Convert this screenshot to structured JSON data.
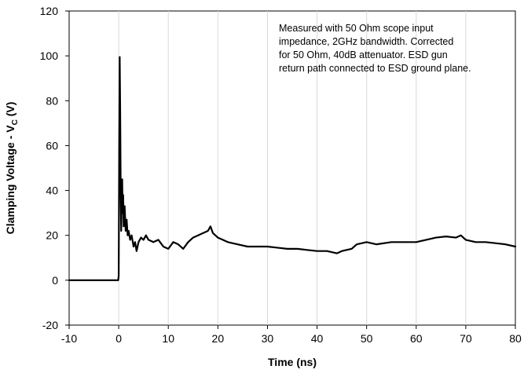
{
  "chart_data": {
    "type": "line",
    "title": "",
    "xlabel": "Time (ns)",
    "ylabel": {
      "main": "Clamping Voltage - V",
      "subscript": "C",
      "suffix": " (V)"
    },
    "xlim": [
      -10,
      80
    ],
    "ylim": [
      -20,
      120
    ],
    "x_ticks": [
      "-10",
      "0",
      "10",
      "20",
      "30",
      "40",
      "50",
      "60",
      "70",
      "80"
    ],
    "y_ticks": [
      "-20",
      "0",
      "20",
      "40",
      "60",
      "80",
      "100",
      "120"
    ],
    "grid": "vertical",
    "legend": "none",
    "annotation": [
      "Measured with 50 Ohm scope input",
      "impedance, 2GHz bandwidth. Corrected",
      "for 50 Ohm, 40dB attenuator. ESD gun",
      "return path connected to ESD ground plane."
    ],
    "series": [
      {
        "color": "#000000",
        "points": [
          [
            -10,
            0
          ],
          [
            -0.1,
            0
          ],
          [
            0,
            2
          ],
          [
            0.1,
            60
          ],
          [
            0.2,
            99.5
          ],
          [
            0.3,
            75
          ],
          [
            0.4,
            40
          ],
          [
            0.5,
            22
          ],
          [
            0.6,
            35
          ],
          [
            0.7,
            45
          ],
          [
            0.8,
            30
          ],
          [
            0.9,
            38
          ],
          [
            1.0,
            24
          ],
          [
            1.1,
            30
          ],
          [
            1.2,
            33
          ],
          [
            1.4,
            22
          ],
          [
            1.6,
            27
          ],
          [
            1.8,
            20
          ],
          [
            2.0,
            22
          ],
          [
            2.3,
            18
          ],
          [
            2.6,
            20
          ],
          [
            3.0,
            15
          ],
          [
            3.3,
            17
          ],
          [
            3.6,
            13
          ],
          [
            4.0,
            17
          ],
          [
            4.5,
            19
          ],
          [
            5.0,
            18
          ],
          [
            5.5,
            20
          ],
          [
            6.0,
            18
          ],
          [
            7.0,
            17
          ],
          [
            8.0,
            18
          ],
          [
            9.0,
            15
          ],
          [
            10.0,
            14
          ],
          [
            11.0,
            17
          ],
          [
            12.0,
            16
          ],
          [
            13.0,
            14
          ],
          [
            14.0,
            17
          ],
          [
            15.0,
            19
          ],
          [
            16.0,
            20
          ],
          [
            17.0,
            21
          ],
          [
            18.0,
            22
          ],
          [
            18.5,
            24
          ],
          [
            19.0,
            21
          ],
          [
            20.0,
            19
          ],
          [
            21.0,
            18
          ],
          [
            22.0,
            17
          ],
          [
            24.0,
            16
          ],
          [
            26.0,
            15
          ],
          [
            28.0,
            15
          ],
          [
            30.0,
            15
          ],
          [
            32.0,
            14.5
          ],
          [
            34.0,
            14
          ],
          [
            36.0,
            14
          ],
          [
            38.0,
            13.5
          ],
          [
            40.0,
            13
          ],
          [
            42.0,
            13
          ],
          [
            44.0,
            12
          ],
          [
            45.0,
            13
          ],
          [
            47.0,
            14
          ],
          [
            48.0,
            16
          ],
          [
            50.0,
            17
          ],
          [
            52.0,
            16
          ],
          [
            55.0,
            17
          ],
          [
            58.0,
            17
          ],
          [
            60.0,
            17
          ],
          [
            62.0,
            18
          ],
          [
            64.0,
            19
          ],
          [
            66.0,
            19.5
          ],
          [
            68.0,
            19
          ],
          [
            69.0,
            20
          ],
          [
            70.0,
            18
          ],
          [
            72.0,
            17
          ],
          [
            74.0,
            17
          ],
          [
            76.0,
            16.5
          ],
          [
            78.0,
            16
          ],
          [
            80.0,
            15
          ]
        ]
      }
    ]
  }
}
